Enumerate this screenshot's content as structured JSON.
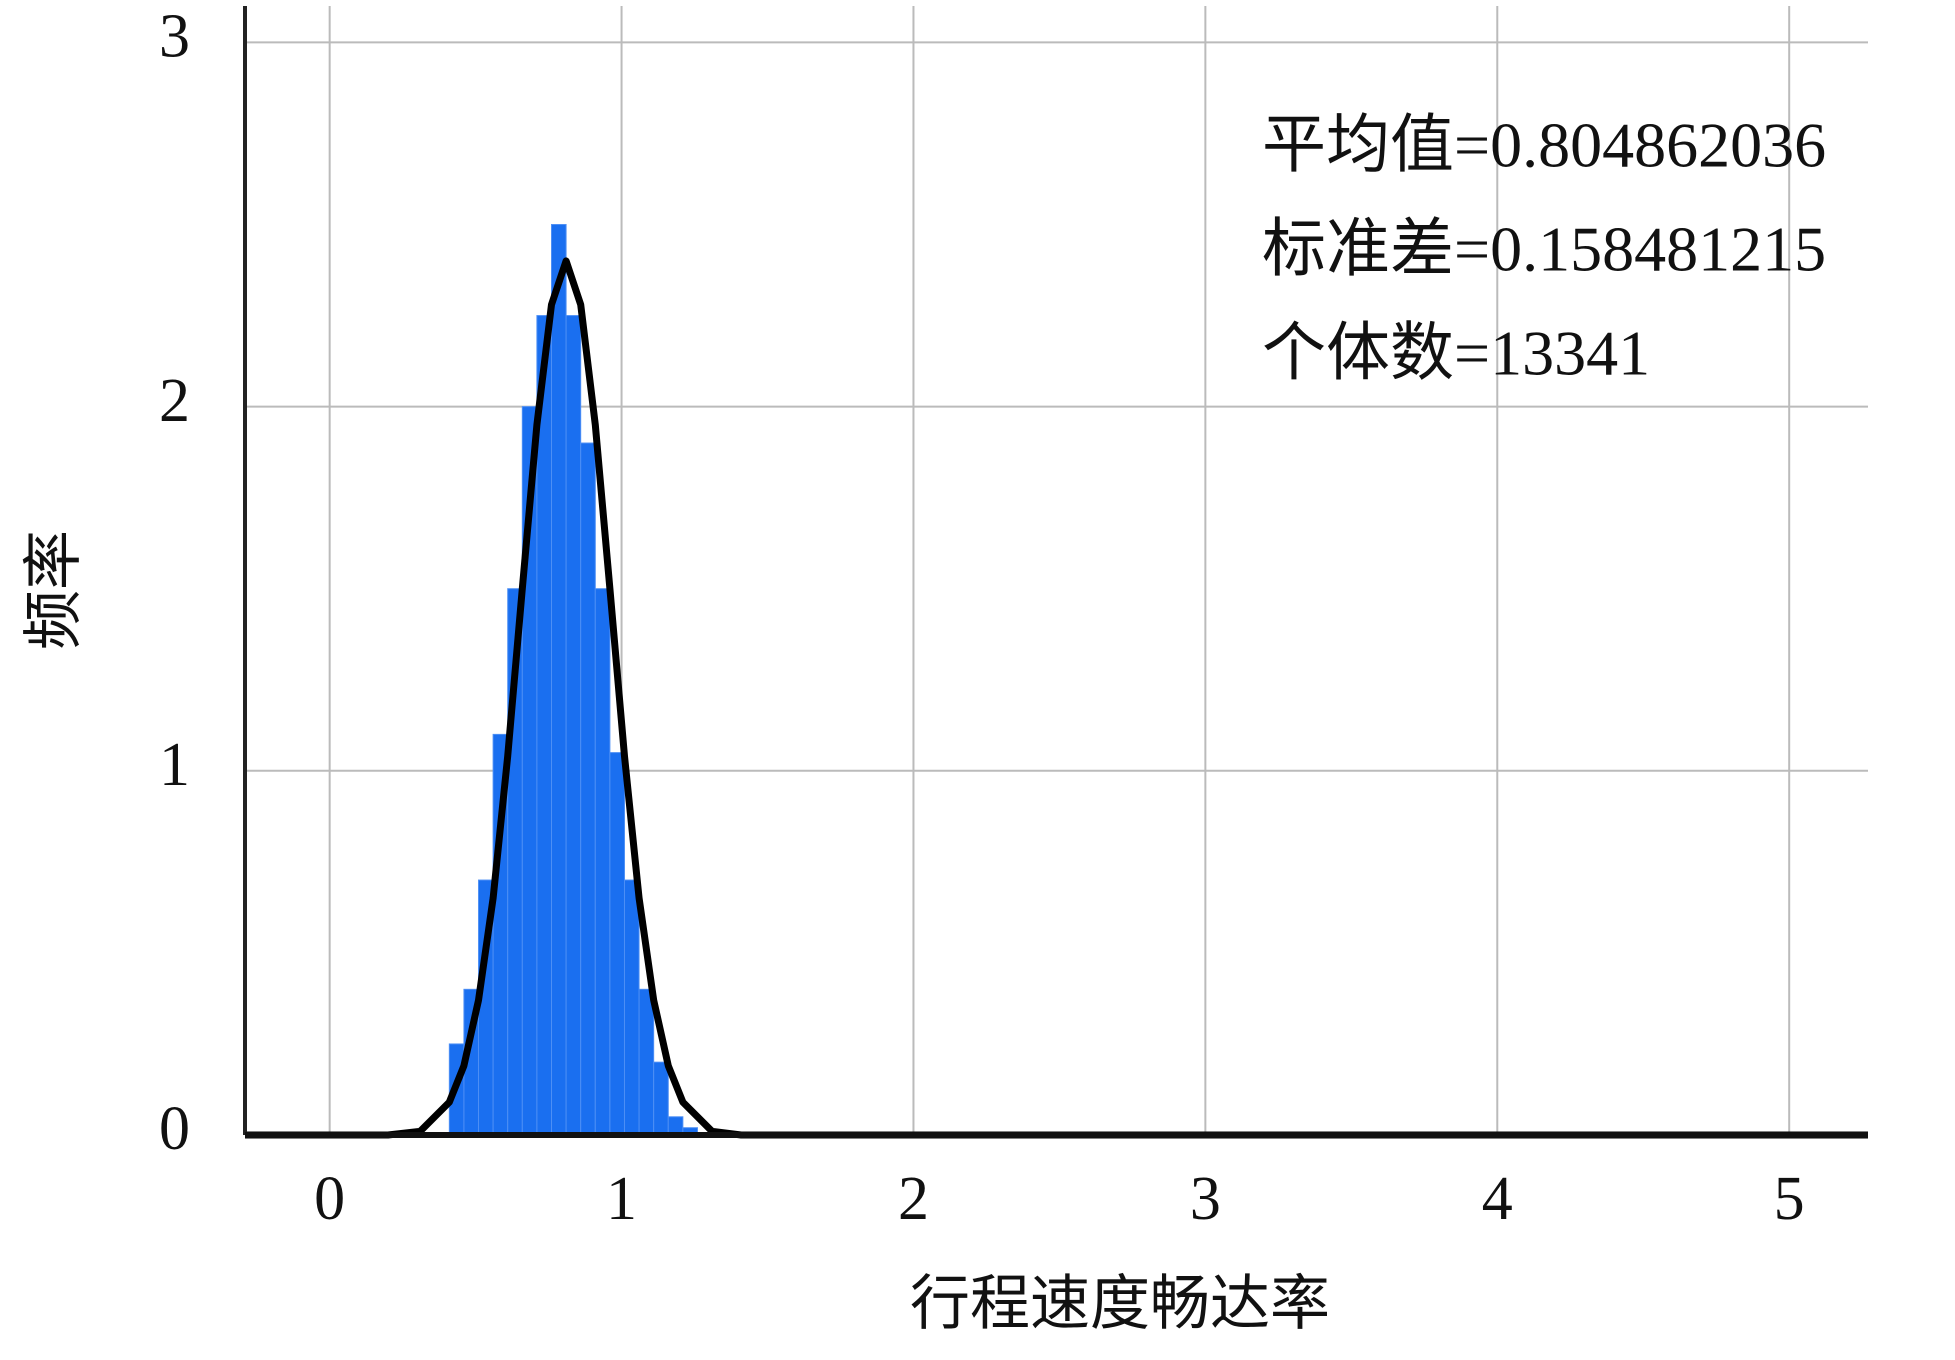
{
  "chart_data": {
    "type": "histogram",
    "xlabel": "行程速度畅达率",
    "ylabel": "频率",
    "annotations": [
      "平均值=0.804862036",
      "标准差=0.158481215",
      "个体数=13341"
    ],
    "bins": [
      0.41,
      0.46,
      0.51,
      0.56,
      0.61,
      0.66,
      0.71,
      0.76,
      0.81,
      0.86,
      0.91,
      0.96,
      1.01,
      1.06,
      1.11,
      1.16,
      1.21,
      1.26
    ],
    "counts": [
      0.25,
      0.4,
      0.7,
      1.1,
      1.5,
      2.0,
      2.25,
      2.5,
      2.25,
      1.9,
      1.5,
      1.05,
      0.7,
      0.4,
      0.2,
      0.05,
      0.02
    ],
    "color": "#1a6ff0",
    "curve": {
      "color": "#000000",
      "x": [
        -0.29,
        0.2,
        0.31,
        0.41,
        0.46,
        0.51,
        0.56,
        0.61,
        0.66,
        0.71,
        0.76,
        0.81,
        0.86,
        0.91,
        0.96,
        1.01,
        1.06,
        1.11,
        1.16,
        1.21,
        1.31,
        1.41,
        5.27
      ],
      "y": [
        0,
        0,
        0.01,
        0.09,
        0.19,
        0.37,
        0.65,
        1.04,
        1.5,
        1.95,
        2.28,
        2.4,
        2.28,
        1.95,
        1.5,
        1.04,
        0.65,
        0.37,
        0.19,
        0.09,
        0.01,
        0,
        0
      ]
    },
    "xlim": [
      -0.29,
      5.27
    ],
    "ylim": [
      0,
      3.1
    ],
    "xticks": [
      0,
      1,
      2,
      3,
      4,
      5
    ],
    "yticks": [
      0,
      1,
      2,
      3
    ],
    "grid": true
  }
}
